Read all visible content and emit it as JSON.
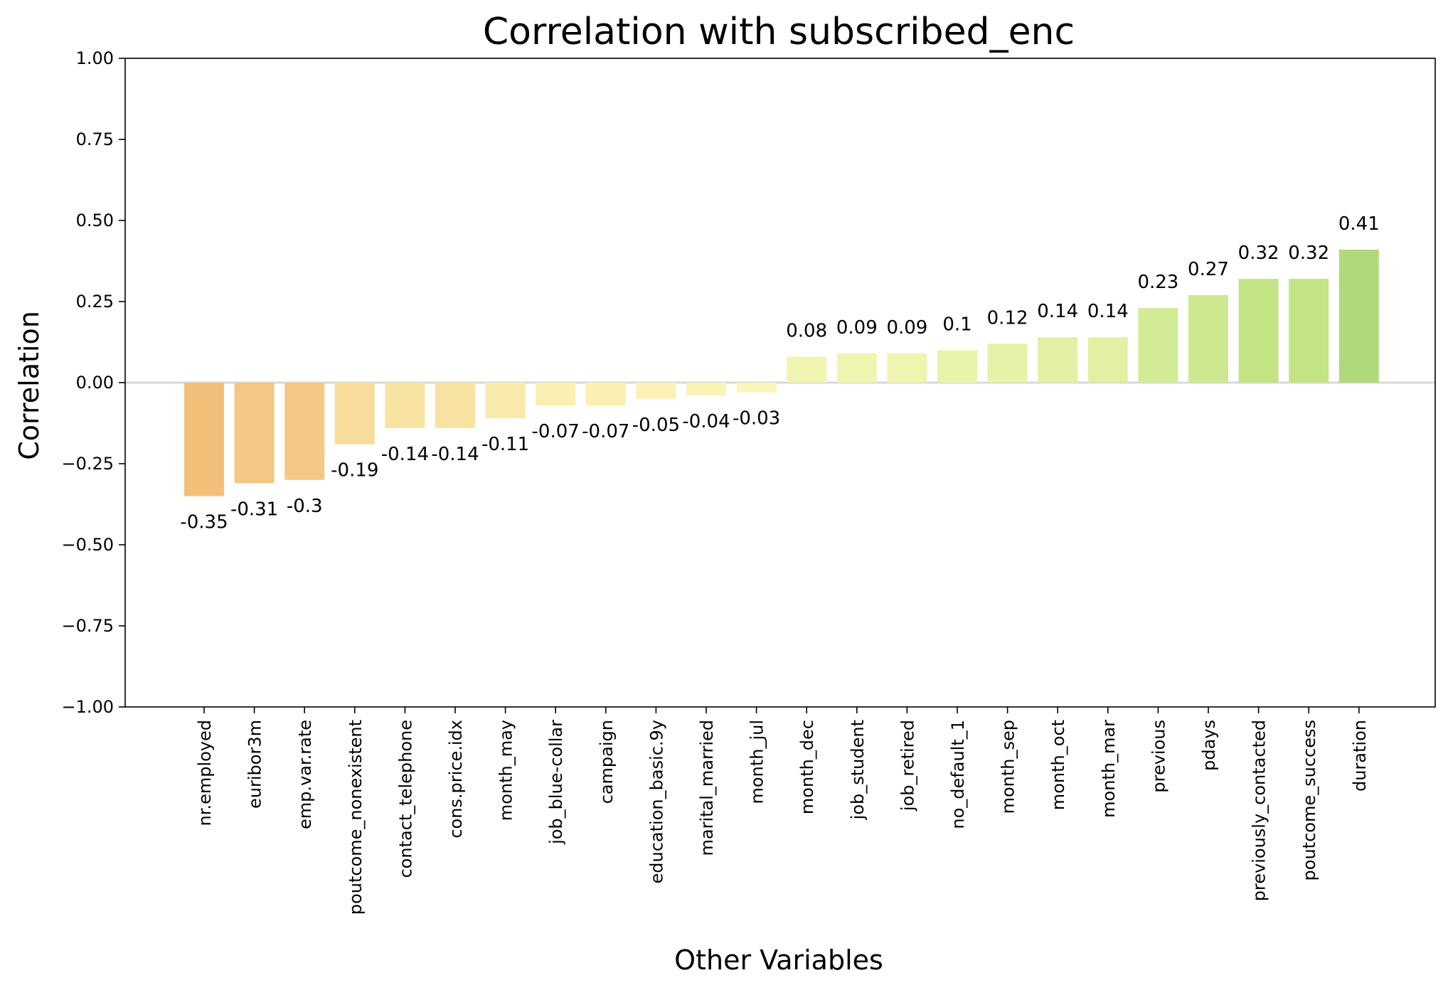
{
  "chart_data": {
    "type": "bar",
    "title": "Correlation with subscribed_enc",
    "xlabel": "Other Variables",
    "ylabel": "Correlation",
    "ylim": [
      -1.0,
      1.0
    ],
    "yticks": [
      "1.00",
      "0.75",
      "0.50",
      "0.25",
      "0.00",
      "−0.25",
      "−0.50",
      "−0.75",
      "−1.00"
    ],
    "ytick_values": [
      1.0,
      0.75,
      0.5,
      0.25,
      0.0,
      -0.25,
      -0.5,
      -0.75,
      -1.0
    ],
    "grid": false,
    "legend": "none",
    "zero_line_color": "#d9d9d9",
    "categories": [
      "nr.employed",
      "euribor3m",
      "emp.var.rate",
      "poutcome_nonexistent",
      "contact_telephone",
      "cons.price.idx",
      "month_may",
      "job_blue-collar",
      "campaign",
      "education_basic.9y",
      "marital_married",
      "month_jul",
      "month_dec",
      "job_student",
      "job_retired",
      "no_default_1",
      "month_sep",
      "month_oct",
      "month_mar",
      "previous",
      "pdays",
      "previously_contacted",
      "poutcome_success",
      "duration"
    ],
    "values": [
      -0.35,
      -0.31,
      -0.3,
      -0.19,
      -0.14,
      -0.14,
      -0.11,
      -0.07,
      -0.07,
      -0.05,
      -0.04,
      -0.03,
      0.08,
      0.09,
      0.09,
      0.1,
      0.12,
      0.14,
      0.14,
      0.23,
      0.27,
      0.32,
      0.32,
      0.41
    ],
    "value_labels": [
      "-0.35",
      "-0.31",
      "-0.3",
      "-0.19",
      "-0.14",
      "-0.14",
      "-0.11",
      "-0.07",
      "-0.07",
      "-0.05",
      "-0.04",
      "-0.03",
      "0.08",
      "0.09",
      "0.09",
      "0.1",
      "0.12",
      "0.14",
      "0.14",
      "0.23",
      "0.27",
      "0.32",
      "0.32",
      "0.41"
    ],
    "colors": [
      "#f2bf79",
      "#f3c784",
      "#f4c986",
      "#f8dc9c",
      "#f9e3a3",
      "#f9e3a3",
      "#faeaab",
      "#fbefb1",
      "#fbefb1",
      "#fbf1b4",
      "#fbf3b6",
      "#faf5b9",
      "#f2f5b0",
      "#eff5ae",
      "#eff5ae",
      "#eaf3aa",
      "#e6f2a7",
      "#e2f0a3",
      "#e2f0a3",
      "#d3eb95",
      "#cde88f",
      "#c3e385",
      "#c3e385",
      "#b0d97c"
    ]
  }
}
